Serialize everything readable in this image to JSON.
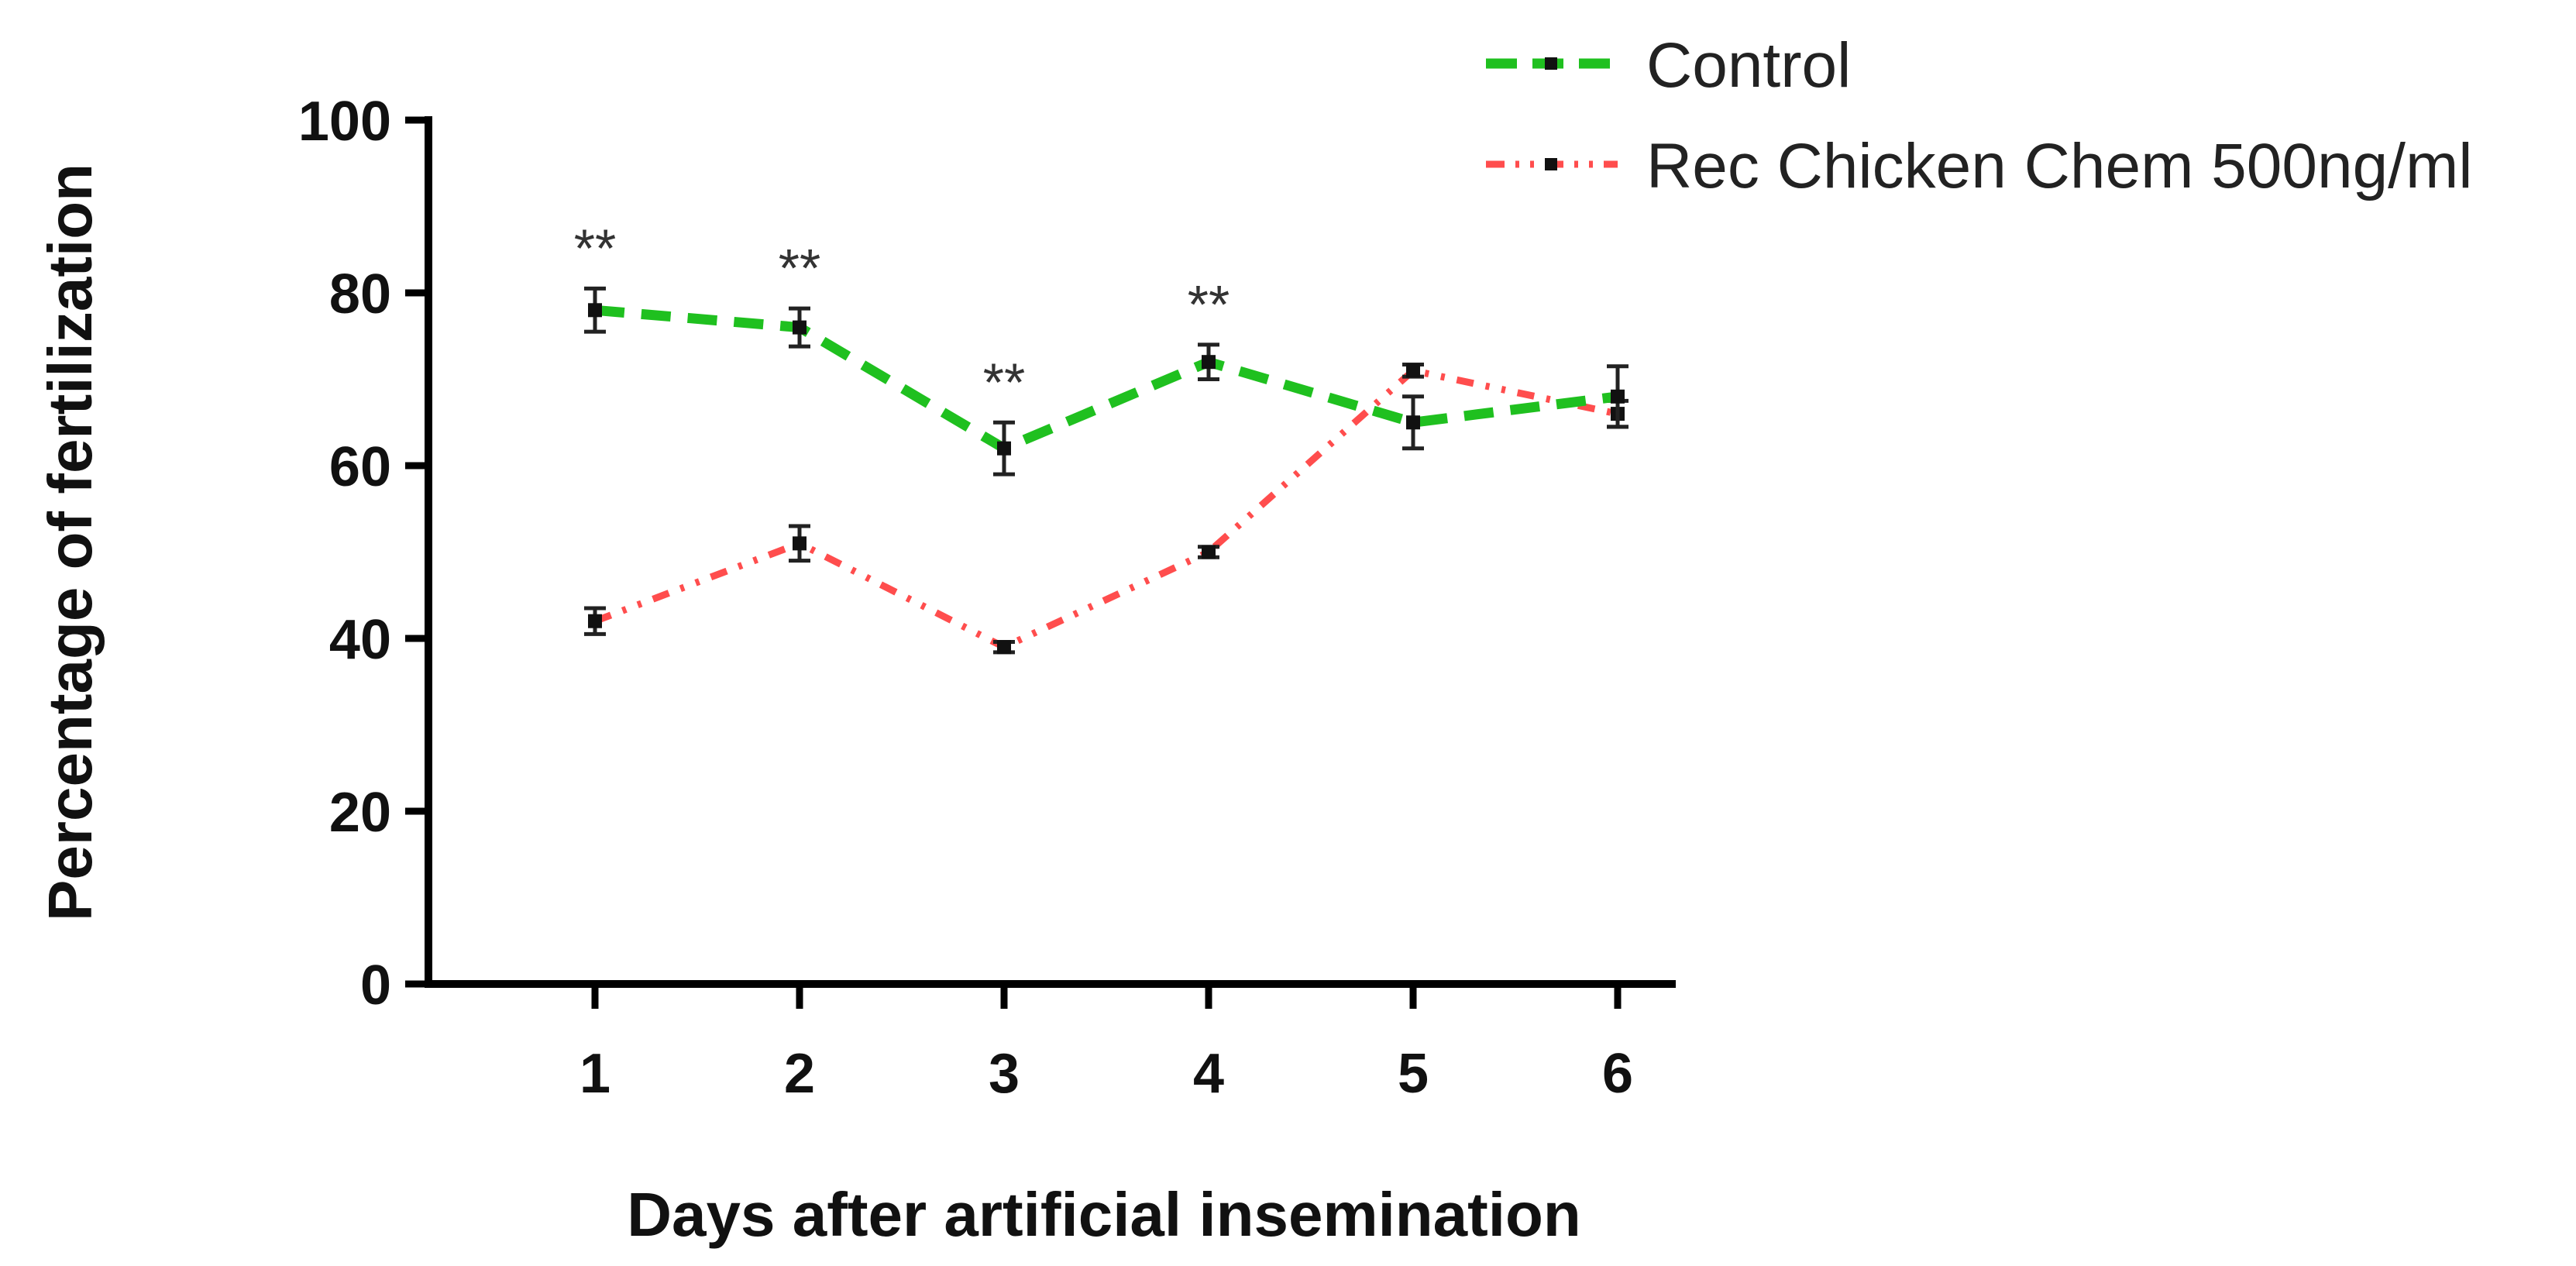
{
  "chart_data": {
    "type": "line",
    "title": "",
    "xlabel": "Days after artificial insemination",
    "ylabel": "Percentage of fertilization",
    "x": [
      1,
      2,
      3,
      4,
      5,
      6
    ],
    "x_tick_labels": [
      "1",
      "2",
      "3",
      "4",
      "5",
      "6"
    ],
    "ylim": [
      0,
      100
    ],
    "y_ticks": [
      0,
      20,
      40,
      60,
      80,
      100
    ],
    "y_tick_labels": [
      "0",
      "20",
      "40",
      "60",
      "80",
      "100"
    ],
    "grid": false,
    "legend_position": "top-right",
    "series": [
      {
        "name": "Control",
        "color": "#1fc01f",
        "line_style": "dashed",
        "values": [
          78,
          76,
          62,
          72,
          65,
          68
        ],
        "errors": [
          2.5,
          2.2,
          3.0,
          2.0,
          3.0,
          3.5
        ]
      },
      {
        "name": "Rec Chicken Chem 500ng/ml",
        "color": "#ff4d4d",
        "line_style": "dash-dot-dot",
        "values": [
          42,
          51,
          39,
          50,
          71,
          66
        ],
        "errors": [
          1.5,
          2.0,
          0.6,
          0.6,
          0.7,
          1.5
        ]
      }
    ],
    "annotations": [
      {
        "x": 1,
        "text": "**"
      },
      {
        "x": 2,
        "text": "**"
      },
      {
        "x": 3,
        "text": "**"
      },
      {
        "x": 4,
        "text": "**"
      }
    ]
  }
}
